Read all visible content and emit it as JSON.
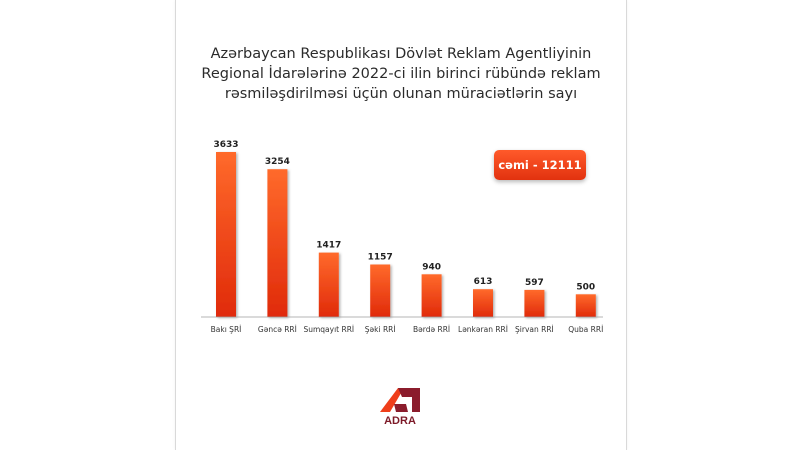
{
  "title_lines": [
    "Azərbaycan Respublikası Dövlət Reklam Agentliyinin",
    "Regional İdarələrinə 2022-ci ilin birinci rübündə reklam",
    "rəsmiləşdirilməsi üçün olunan müraciətlərin sayı"
  ],
  "total_label": "cəmi - 12111",
  "logo_text": "ADRA",
  "colors": {
    "bar_top": "#ff6a2b",
    "bar_bottom": "#e02a0a",
    "logo_orange": "#ef3e1a",
    "logo_dark": "#8b1c2c"
  },
  "chart_data": {
    "type": "bar",
    "title": "Azərbaycan Respublikası Dövlət Reklam Agentliyinin Regional İdarələrinə 2022-ci ilin birinci rübündə reklam rəsmiləşdirilməsi üçün olunan müraciətlərin sayı",
    "categories": [
      "Bakı ŞRİ",
      "Gəncə RRİ",
      "Sumqayıt RRİ",
      "Şəki RRİ",
      "Bərdə RRİ",
      "Lənkəran RRİ",
      "Şirvan RRİ",
      "Quba RRİ"
    ],
    "values": [
      3633,
      3254,
      1417,
      1157,
      940,
      613,
      597,
      500
    ],
    "xlabel": "",
    "ylabel": "",
    "ylim": [
      0,
      3633
    ],
    "grid": false,
    "legend": "none"
  }
}
